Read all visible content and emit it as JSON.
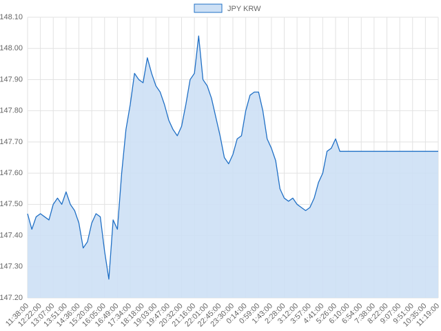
{
  "chart_data": {
    "type": "line",
    "categories": [
      "11:38:00",
      null,
      null,
      "12:22:00",
      null,
      null,
      "13:07:00",
      null,
      null,
      "13:51:00",
      null,
      null,
      "14:36:00",
      null,
      null,
      "15:20:00",
      null,
      null,
      "16:05:00",
      null,
      null,
      "16:49:00",
      null,
      null,
      "17:34:00",
      null,
      null,
      "18:18:00",
      null,
      null,
      "19:03:00",
      null,
      null,
      "19:47:00",
      null,
      null,
      "20:32:00",
      null,
      null,
      "21:16:00",
      null,
      null,
      "22:01:00",
      null,
      null,
      "22:45:00",
      null,
      null,
      "23:30:00",
      null,
      null,
      "0:14:00",
      null,
      null,
      "0:59:00",
      null,
      null,
      "1:43:00",
      null,
      null,
      "2:28:00",
      null,
      null,
      "3:12:00",
      null,
      null,
      "3:57:00",
      null,
      null,
      "4:41:00",
      null,
      null,
      "5:26:00",
      null,
      null,
      "6:10:00",
      null,
      null,
      "6:54:00",
      null,
      null,
      "7:38:00",
      null,
      null,
      "8:22:00",
      null,
      null,
      "9:07:00",
      null,
      null,
      "9:51:00",
      null,
      null,
      "10:35:00",
      null,
      null,
      "11:19:00"
    ],
    "series": [
      {
        "name": "JPY KRW",
        "color": "#1f6fc5",
        "fill_color": "#cde0f5",
        "values": [
          147.47,
          147.42,
          147.46,
          147.47,
          147.46,
          147.45,
          147.5,
          147.52,
          147.5,
          147.54,
          147.5,
          147.48,
          147.44,
          147.36,
          147.38,
          147.44,
          147.47,
          147.46,
          147.35,
          147.26,
          147.45,
          147.42,
          147.6,
          147.74,
          147.82,
          147.92,
          147.9,
          147.89,
          147.97,
          147.92,
          147.88,
          147.86,
          147.82,
          147.77,
          147.74,
          147.72,
          147.75,
          147.82,
          147.9,
          147.92,
          148.04,
          147.9,
          147.88,
          147.84,
          147.78,
          147.72,
          147.65,
          147.63,
          147.66,
          147.71,
          147.72,
          147.8,
          147.85,
          147.86,
          147.86,
          147.8,
          147.71,
          147.68,
          147.64,
          147.55,
          147.52,
          147.51,
          147.52,
          147.5,
          147.49,
          147.48,
          147.49,
          147.52,
          147.57,
          147.6,
          147.67,
          147.68,
          147.71,
          147.67,
          147.67,
          147.67,
          147.67,
          147.67,
          147.67,
          147.67,
          147.67,
          147.67,
          147.67,
          147.67,
          147.67,
          147.67,
          147.67,
          147.67,
          147.67,
          147.67,
          147.67,
          147.67,
          147.67,
          147.67,
          147.67,
          147.67,
          147.67
        ]
      }
    ],
    "ylim": [
      147.2,
      148.1
    ],
    "yticks": [
      {
        "value": 147.2,
        "label": "147.20"
      },
      {
        "value": 147.3,
        "label": "147.30"
      },
      {
        "value": 147.4,
        "label": "147.40"
      },
      {
        "value": 147.5,
        "label": "147.50"
      },
      {
        "value": 147.6,
        "label": "147.60"
      },
      {
        "value": 147.7,
        "label": "147.70"
      },
      {
        "value": 147.8,
        "label": "147.80"
      },
      {
        "value": 147.9,
        "label": "147.90"
      },
      {
        "value": 148,
        "label": "148.00"
      },
      {
        "value": 148.1,
        "label": "148.10"
      }
    ],
    "grid": true,
    "legend": "top"
  }
}
